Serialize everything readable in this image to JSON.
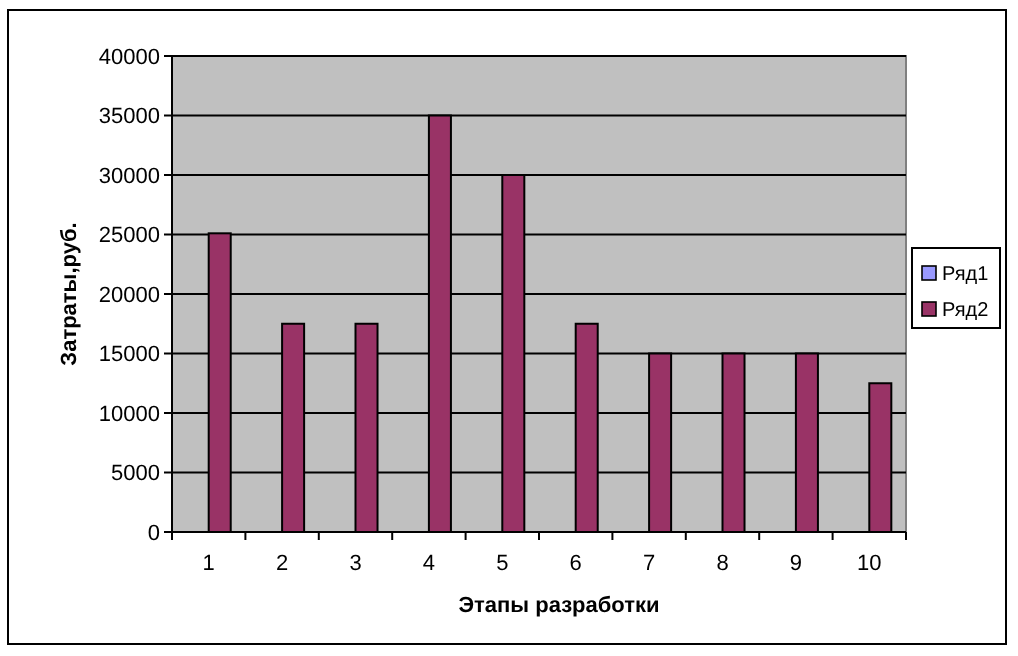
{
  "chart_data": {
    "type": "bar",
    "xlabel": "Этапы разработки",
    "ylabel": "Затраты,руб.",
    "categories": [
      "1",
      "2",
      "3",
      "4",
      "5",
      "6",
      "7",
      "8",
      "9",
      "10"
    ],
    "series": [
      {
        "name": "Ряд1",
        "color": "#9999ff",
        "values": [
          null,
          null,
          null,
          null,
          null,
          null,
          null,
          null,
          null,
          null
        ]
      },
      {
        "name": "Ряд2",
        "color": "#993366",
        "values": [
          25100,
          17500,
          17500,
          35000,
          30000,
          17500,
          15000,
          15000,
          15000,
          12500
        ]
      }
    ],
    "ylim": [
      0,
      40000
    ],
    "yticks": [
      0,
      5000,
      10000,
      15000,
      20000,
      25000,
      30000,
      35000,
      40000
    ],
    "grid": "y",
    "legend": "right"
  }
}
